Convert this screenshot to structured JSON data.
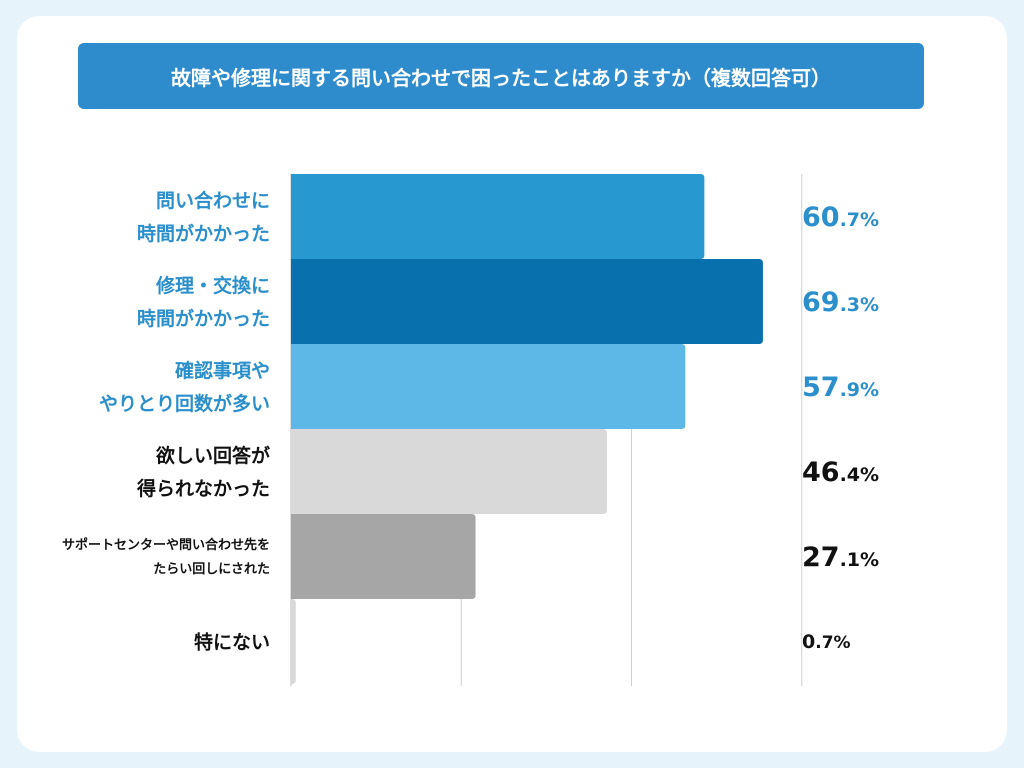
{
  "title": "故障や修理に関する問い合わせで困ったことはありますか（複数回答可）",
  "chart_data": {
    "type": "bar",
    "orientation": "horizontal",
    "title": "故障や修理に関する問い合わせで困ったことはありますか（複数回答可）",
    "unit": "%",
    "xlim": [
      0,
      100
    ],
    "grid": "vertical",
    "categories": [
      [
        "問い合わせに",
        "時間がかかった"
      ],
      [
        "修理・交換に",
        "時間がかかった"
      ],
      [
        "確認事項や",
        "やりとり回数が多い"
      ],
      [
        "欲しい回答が",
        "得られなかった"
      ],
      [
        "サポートセンターや問い合わせ先を",
        "たらい回しにされた"
      ],
      [
        "特にない"
      ]
    ],
    "values": [
      60.7,
      69.3,
      57.9,
      46.4,
      27.1,
      0.7
    ],
    "value_labels": [
      [
        "60",
        ".7%"
      ],
      [
        "69",
        ".3%"
      ],
      [
        "57",
        ".9%"
      ],
      [
        "46",
        ".4%"
      ],
      [
        "27",
        ".1%"
      ],
      [
        "0",
        ".7%"
      ]
    ],
    "bar_colors": [
      "#2898d0",
      "#0770ad",
      "#5db8e8",
      "#d9d9d9",
      "#a6a6a6",
      "#d9d9d9"
    ],
    "label_colors": [
      "#2a8fcb",
      "#2a8fcb",
      "#2a8fcb",
      "#111111",
      "#111111",
      "#111111"
    ]
  }
}
